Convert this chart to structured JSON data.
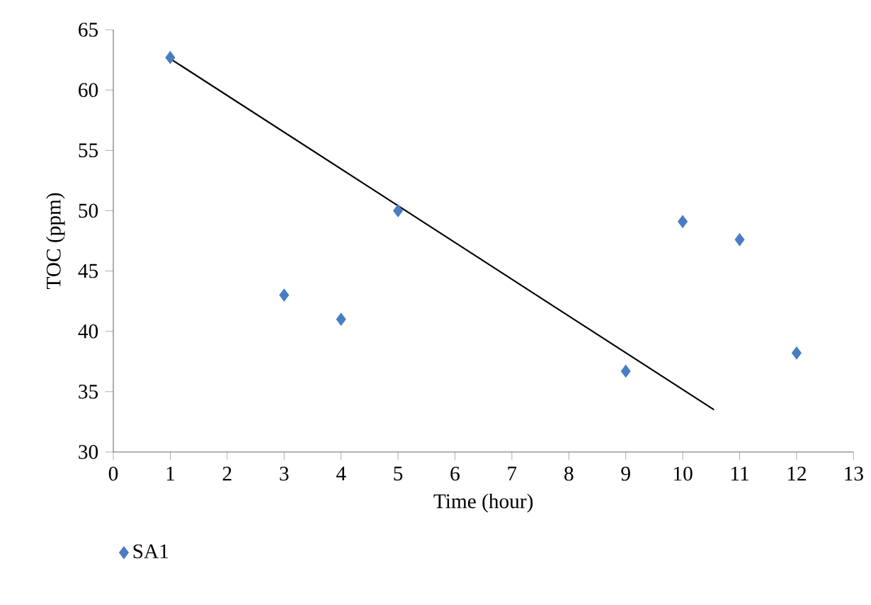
{
  "chart_data": {
    "type": "scatter",
    "xlabel": "Time (hour)",
    "ylabel": "TOC (ppm)",
    "xlim": [
      0,
      13
    ],
    "xticks": [
      0,
      1,
      2,
      3,
      4,
      5,
      6,
      7,
      8,
      9,
      10,
      11,
      12,
      13
    ],
    "ylim": [
      30,
      65
    ],
    "yticks": [
      30,
      35,
      40,
      45,
      50,
      55,
      60,
      65
    ],
    "grid": false,
    "legend": "bottom left",
    "marker": "diamond",
    "series": [
      {
        "name": "SA1",
        "color": "#4a7cc4",
        "x": [
          1,
          3,
          4,
          5,
          9,
          10,
          11,
          12
        ],
        "values": [
          62.7,
          43.0,
          41.0,
          50.0,
          36.7,
          49.1,
          47.6,
          38.2
        ]
      },
      {
        "type": "line",
        "color": "#000000",
        "marker": "none",
        "line_style": "solid",
        "x": [
          1,
          10.55
        ],
        "values": [
          62.6,
          33.5
        ]
      }
    ]
  }
}
